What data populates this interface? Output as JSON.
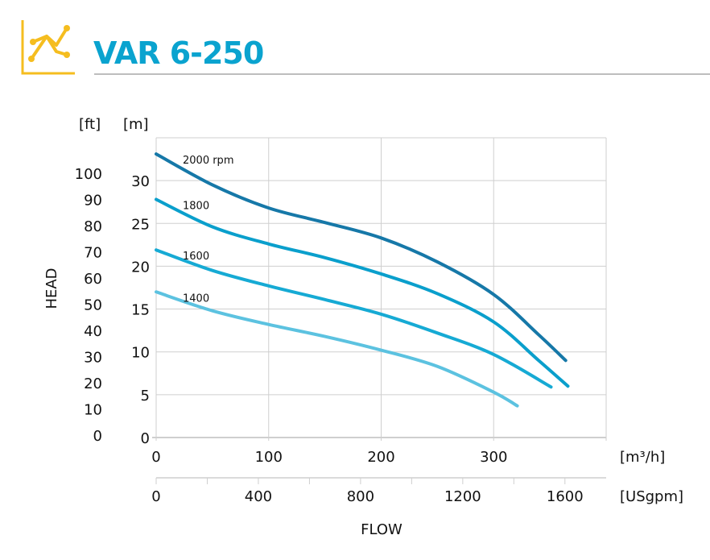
{
  "header": {
    "title": "VAR 6-250",
    "icon": "line-chart-icon",
    "icon_color": "#f5bd1f",
    "title_color": "#0aa3cf"
  },
  "chart_data": {
    "type": "line",
    "title": "VAR 6-250",
    "xlabel": "FLOW",
    "ylabel": "HEAD",
    "x_unit": "[m³/h]",
    "x2_unit": "[USgpm]",
    "y_unit": "[m]",
    "y2_unit": "[ft]",
    "xlim": [
      0,
      400
    ],
    "ylim": [
      0,
      35
    ],
    "grid": true,
    "x_ticks": [
      "0",
      "100",
      "200",
      "300"
    ],
    "x2_ticks": [
      "0",
      "400",
      "800",
      "1200",
      "1600"
    ],
    "y_ticks": [
      "0",
      "5",
      "10",
      "15",
      "20",
      "25",
      "30"
    ],
    "y2_ticks": [
      "0",
      "10",
      "20",
      "30",
      "40",
      "50",
      "60",
      "70",
      "80",
      "90",
      "100"
    ],
    "series": [
      {
        "name": "2000 rpm",
        "color": "#1678a8",
        "points": [
          [
            0,
            33.1
          ],
          [
            50,
            29.5
          ],
          [
            100,
            26.8
          ],
          [
            150,
            25.1
          ],
          [
            200,
            23.3
          ],
          [
            250,
            20.5
          ],
          [
            300,
            16.7
          ],
          [
            340,
            12
          ],
          [
            364,
            9
          ]
        ]
      },
      {
        "name": "1800",
        "color": "#0a9fcc",
        "points": [
          [
            0,
            27.8
          ],
          [
            50,
            24.6
          ],
          [
            100,
            22.6
          ],
          [
            150,
            21
          ],
          [
            200,
            19.1
          ],
          [
            250,
            16.8
          ],
          [
            300,
            13.5
          ],
          [
            340,
            9
          ],
          [
            366,
            6
          ]
        ]
      },
      {
        "name": "1600",
        "color": "#16aad4",
        "points": [
          [
            0,
            21.9
          ],
          [
            50,
            19.5
          ],
          [
            100,
            17.7
          ],
          [
            150,
            16.1
          ],
          [
            200,
            14.4
          ],
          [
            250,
            12.2
          ],
          [
            300,
            9.7
          ],
          [
            351,
            5.9
          ]
        ]
      },
      {
        "name": "1400",
        "color": "#5cc2e0",
        "points": [
          [
            0,
            17
          ],
          [
            50,
            14.8
          ],
          [
            100,
            13.2
          ],
          [
            150,
            11.8
          ],
          [
            200,
            10.2
          ],
          [
            250,
            8.3
          ],
          [
            300,
            5.3
          ],
          [
            321,
            3.7
          ]
        ]
      }
    ]
  }
}
